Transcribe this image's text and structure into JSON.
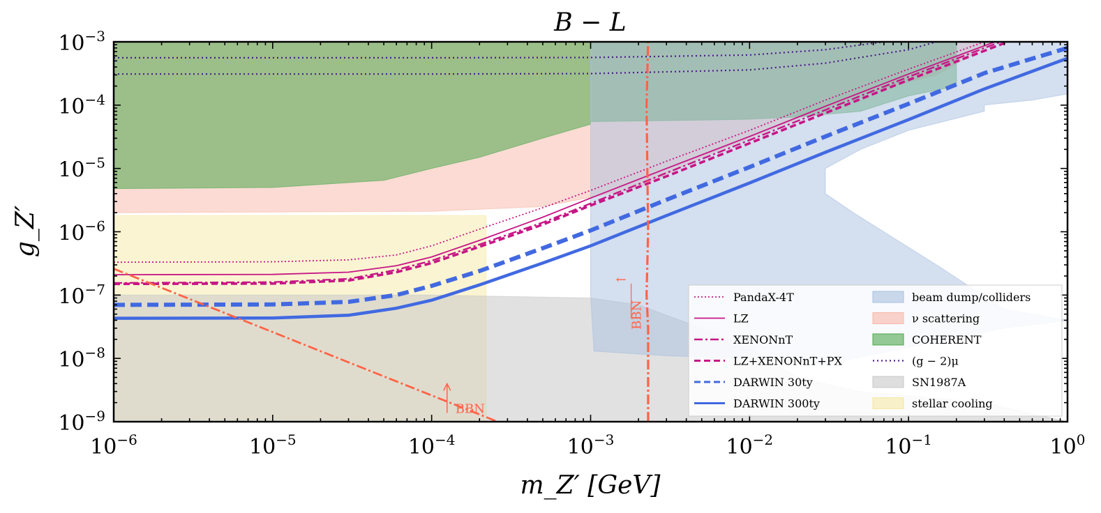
{
  "chart_data": {
    "type": "line",
    "title": "B − L",
    "xlabel": "m_Z′ [GeV]",
    "ylabel": "g_Z′",
    "xscale": "log",
    "yscale": "log",
    "xlim": [
      1e-06,
      1
    ],
    "ylim": [
      1e-09,
      0.001
    ],
    "grid": false,
    "legend_placement": "bottom-right",
    "x_ticks": [
      {
        "base": "10",
        "exp": "−6",
        "value": 1e-06
      },
      {
        "base": "10",
        "exp": "−5",
        "value": 1e-05
      },
      {
        "base": "10",
        "exp": "−4",
        "value": 0.0001
      },
      {
        "base": "10",
        "exp": "−3",
        "value": 0.001
      },
      {
        "base": "10",
        "exp": "−2",
        "value": 0.01
      },
      {
        "base": "10",
        "exp": "−1",
        "value": 0.1
      },
      {
        "base": "10",
        "exp": "0",
        "value": 1
      }
    ],
    "y_ticks": [
      {
        "base": "10",
        "exp": "−9",
        "value": 1e-09
      },
      {
        "base": "10",
        "exp": "−8",
        "value": 1e-08
      },
      {
        "base": "10",
        "exp": "−7",
        "value": 1e-07
      },
      {
        "base": "10",
        "exp": "−6",
        "value": 1e-06
      },
      {
        "base": "10",
        "exp": "−5",
        "value": 1e-05
      },
      {
        "base": "10",
        "exp": "−4",
        "value": 0.0001
      },
      {
        "base": "10",
        "exp": "−3",
        "value": 0.001
      }
    ],
    "regions": [
      {
        "name": "stellar cooling",
        "color": "#f5e9a6",
        "opacity": 0.5,
        "points": [
          [
            1e-06,
            1e-09
          ],
          [
            0.00022,
            1e-09
          ],
          [
            0.00022,
            1.8e-06
          ],
          [
            1e-06,
            1.8e-06
          ]
        ]
      },
      {
        "name": "SN1987A",
        "color": "#c8c8c8",
        "opacity": 0.55,
        "points": [
          [
            1e-06,
            1e-09
          ],
          [
            1,
            1e-09
          ],
          [
            0.3,
            2e-09
          ],
          [
            0.05,
            3e-09
          ],
          [
            0.02,
            5e-09
          ],
          [
            0.01,
            1.5e-08
          ],
          [
            0.005,
            3e-08
          ],
          [
            0.002,
            7e-08
          ],
          [
            0.001,
            9e-08
          ],
          [
            0.0003,
            9.5e-08
          ],
          [
            0.0001,
            1e-07
          ],
          [
            1e-06,
            1e-07
          ]
        ]
      },
      {
        "name": "ν scattering",
        "color": "#f7b8a8",
        "opacity": 0.5,
        "points": [
          [
            1e-06,
            0.001
          ],
          [
            0.35,
            0.001
          ],
          [
            0.15,
            0.0003
          ],
          [
            0.05,
            0.00015
          ],
          [
            0.02,
            6e-05
          ],
          [
            0.01,
            3e-05
          ],
          [
            0.005,
            1.5e-05
          ],
          [
            0.003,
            8e-06
          ],
          [
            0.002,
            5e-06
          ],
          [
            0.001,
            3.5e-06
          ],
          [
            0.0005,
            2.5e-06
          ],
          [
            0.0001,
            2.1e-06
          ],
          [
            1e-06,
            2e-06
          ]
        ]
      },
      {
        "name": "COHERENT",
        "color": "#4fa84f",
        "opacity": 0.55,
        "points": [
          [
            1e-06,
            0.001
          ],
          [
            0.2,
            0.001
          ],
          [
            0.2,
            0.0002
          ],
          [
            0.1,
            0.00014
          ],
          [
            0.05,
            8e-05
          ],
          [
            0.02,
            6.5e-05
          ],
          [
            0.01,
            6e-05
          ],
          [
            0.005,
            5.8e-05
          ],
          [
            0.001,
            5.5e-05
          ],
          [
            0.001,
            5e-05
          ],
          [
            0.0005,
            3e-05
          ],
          [
            0.0002,
            1.5e-05
          ],
          [
            0.0001,
            1e-05
          ],
          [
            5e-05,
            6.5e-06
          ],
          [
            1e-05,
            5e-06
          ],
          [
            1e-06,
            4.8e-06
          ]
        ]
      },
      {
        "name": "beam dump/colliders",
        "color": "#a9c0e0",
        "opacity": 0.5,
        "points": [
          [
            0.001,
            0.001
          ],
          [
            1,
            0.001
          ],
          [
            1,
            0.00015
          ],
          [
            0.6,
            0.00012
          ],
          [
            0.3,
            0.0001
          ],
          [
            0.3,
            8e-05
          ],
          [
            0.1,
            4e-05
          ],
          [
            0.05,
            2e-05
          ],
          [
            0.03,
            1e-05
          ],
          [
            0.03,
            4e-06
          ],
          [
            0.045,
            2e-06
          ],
          [
            0.15,
            3e-07
          ],
          [
            0.4,
            6e-08
          ],
          [
            1,
            4e-08
          ],
          [
            0.4,
            3e-08
          ],
          [
            0.1,
            1.5e-08
          ],
          [
            0.03,
            8e-09
          ],
          [
            0.01,
            1e-08
          ],
          [
            0.003,
            1.1e-08
          ],
          [
            0.00105,
            1.3e-08
          ],
          [
            0.001,
            1e-07
          ]
        ]
      }
    ],
    "series": [
      {
        "name": "PandaX-4T",
        "color": "#c71585",
        "dash": "2,3",
        "width": 1.8,
        "points": [
          [
            1e-06,
            3.3e-07
          ],
          [
            1e-05,
            3.35e-07
          ],
          [
            3e-05,
            3.6e-07
          ],
          [
            6e-05,
            4.3e-07
          ],
          [
            0.0001,
            6e-07
          ],
          [
            0.0002,
            1.1e-06
          ],
          [
            0.0005,
            2.4e-06
          ],
          [
            0.001,
            4.5e-06
          ],
          [
            0.003,
            1.3e-05
          ],
          [
            0.01,
            4e-05
          ],
          [
            0.03,
            0.00012
          ],
          [
            0.1,
            0.00037
          ],
          [
            0.3,
            0.001
          ]
        ]
      },
      {
        "name": "LZ",
        "color": "#c71585",
        "dash": "",
        "width": 1.8,
        "points": [
          [
            1e-06,
            2.1e-07
          ],
          [
            1e-05,
            2.12e-07
          ],
          [
            3e-05,
            2.3e-07
          ],
          [
            6e-05,
            2.9e-07
          ],
          [
            0.0001,
            4e-07
          ],
          [
            0.0002,
            7.3e-07
          ],
          [
            0.0005,
            1.7e-06
          ],
          [
            0.001,
            3.4e-06
          ],
          [
            0.003,
            1e-05
          ],
          [
            0.01,
            3.2e-05
          ],
          [
            0.03,
            9.6e-05
          ],
          [
            0.1,
            0.00031
          ],
          [
            0.35,
            0.001
          ]
        ]
      },
      {
        "name": "XENONnT",
        "color": "#c71585",
        "dash": "12,4,3,4",
        "width": 2.4,
        "points": [
          [
            1e-06,
            1.55e-07
          ],
          [
            1e-05,
            1.6e-07
          ],
          [
            3e-05,
            1.8e-07
          ],
          [
            6e-05,
            2.5e-07
          ],
          [
            0.0001,
            3.5e-07
          ],
          [
            0.0002,
            6.3e-07
          ],
          [
            0.0005,
            1.4e-06
          ],
          [
            0.001,
            2.8e-06
          ],
          [
            0.003,
            8.5e-06
          ],
          [
            0.01,
            2.8e-05
          ],
          [
            0.03,
            8.4e-05
          ],
          [
            0.1,
            0.00028
          ],
          [
            0.38,
            0.001
          ]
        ]
      },
      {
        "name": "LZ+XENONnT+PX",
        "color": "#c71585",
        "dash": "9,5",
        "width": 3.6,
        "points": [
          [
            1e-06,
            1.5e-07
          ],
          [
            1e-05,
            1.52e-07
          ],
          [
            3e-05,
            1.7e-07
          ],
          [
            6e-05,
            2.3e-07
          ],
          [
            0.0001,
            3.2e-07
          ],
          [
            0.0002,
            5.8e-07
          ],
          [
            0.0005,
            1.3e-06
          ],
          [
            0.001,
            2.6e-06
          ],
          [
            0.003,
            7.5e-06
          ],
          [
            0.01,
            2.5e-05
          ],
          [
            0.03,
            7.5e-05
          ],
          [
            0.1,
            0.00025
          ],
          [
            0.42,
            0.001
          ]
        ]
      },
      {
        "name": "DARWIN 30ty",
        "color": "#4169e1",
        "dash": "16,8",
        "width": 6,
        "points": [
          [
            1e-06,
            7e-08
          ],
          [
            1e-05,
            7.1e-08
          ],
          [
            3e-05,
            7.8e-08
          ],
          [
            6e-05,
            1e-07
          ],
          [
            0.0001,
            1.4e-07
          ],
          [
            0.0002,
            2.4e-07
          ],
          [
            0.0005,
            5.5e-07
          ],
          [
            0.001,
            1.05e-06
          ],
          [
            0.003,
            3.2e-06
          ],
          [
            0.01,
            1.05e-05
          ],
          [
            0.03,
            3.2e-05
          ],
          [
            0.1,
            0.000105
          ],
          [
            0.3,
            0.00032
          ],
          [
            1,
            0.0008
          ]
        ]
      },
      {
        "name": "DARWIN 300ty",
        "color": "#4169e1",
        "dash": "",
        "width": 4.5,
        "points": [
          [
            1e-06,
            4.3e-08
          ],
          [
            1e-05,
            4.35e-08
          ],
          [
            3e-05,
            4.8e-08
          ],
          [
            6e-05,
            6.2e-08
          ],
          [
            0.0001,
            8.3e-08
          ],
          [
            0.0002,
            1.45e-07
          ],
          [
            0.0005,
            3.2e-07
          ],
          [
            0.001,
            6e-07
          ],
          [
            0.003,
            1.8e-06
          ],
          [
            0.01,
            5.9e-06
          ],
          [
            0.03,
            1.8e-05
          ],
          [
            0.1,
            5.9e-05
          ],
          [
            0.3,
            0.00018
          ],
          [
            1,
            0.00055
          ]
        ]
      },
      {
        "name": "(g − 2)_μ upper",
        "color": "#4b1a8c",
        "dash": "2,4",
        "width": 2.2,
        "legend": false,
        "points": [
          [
            1e-06,
            0.00056
          ],
          [
            0.0001,
            0.00056
          ],
          [
            0.001,
            0.000565
          ],
          [
            0.01,
            0.00062
          ],
          [
            0.03,
            0.00075
          ],
          [
            0.07,
            0.001
          ]
        ]
      },
      {
        "name": "(g − 2)_μ lower",
        "color": "#4b1a8c",
        "dash": "2,4",
        "width": 2.2,
        "legend": false,
        "points": [
          [
            1e-06,
            0.00031
          ],
          [
            0.0001,
            0.00031
          ],
          [
            0.001,
            0.000315
          ],
          [
            0.01,
            0.00036
          ],
          [
            0.03,
            0.00046
          ],
          [
            0.1,
            0.00075
          ],
          [
            0.15,
            0.001
          ]
        ]
      },
      {
        "name": "BBN diagonal",
        "color": "#ff6347",
        "dash": "14,4,3,4",
        "width": 2.8,
        "legend": false,
        "points": [
          [
            1e-06,
            2.6e-07
          ],
          [
            0.00026,
            1e-09
          ]
        ]
      },
      {
        "name": "BBN vertical",
        "color": "#ff6347",
        "dash": "14,4,3,4",
        "width": 3.2,
        "legend": false,
        "points": [
          [
            0.0023,
            1e-09
          ],
          [
            0.0023,
            3e-08
          ],
          [
            0.00225,
            1e-07
          ],
          [
            0.0023,
            1e-06
          ],
          [
            0.00225,
            0.0001
          ],
          [
            0.0023,
            0.001
          ]
        ]
      }
    ],
    "legend": {
      "columns": [
        [
          {
            "label": "PandaX-4T",
            "kind": "line",
            "color": "#c71585",
            "dash": "2,3",
            "width": 1.8
          },
          {
            "label": "LZ",
            "kind": "line",
            "color": "#c71585",
            "dash": "",
            "width": 1.8
          },
          {
            "label": "XENONnT",
            "kind": "line",
            "color": "#c71585",
            "dash": "12,4,3,4",
            "width": 2.4
          },
          {
            "label": "LZ+XENONnT+PX",
            "kind": "line",
            "color": "#c71585",
            "dash": "9,5",
            "width": 3
          },
          {
            "label": "DARWIN 30ty",
            "kind": "line",
            "color": "#4169e1",
            "dash": "9,5",
            "width": 3
          },
          {
            "label": "DARWIN 300ty",
            "kind": "line",
            "color": "#4169e1",
            "dash": "",
            "width": 3
          }
        ],
        [
          {
            "label": "beam dump/colliders",
            "kind": "patch",
            "color": "#a9c0e0"
          },
          {
            "label": "ν scattering",
            "kind": "patch",
            "color": "#f7b8a8"
          },
          {
            "label": "COHERENT",
            "kind": "patch",
            "color": "#4fa84f"
          },
          {
            "label": "(g − 2)μ",
            "kind": "line",
            "color": "#4b1a8c",
            "dash": "2,4",
            "width": 2.2
          },
          {
            "label": "SN1987A",
            "kind": "patch",
            "color": "#c8c8c8"
          },
          {
            "label": "stellar cooling",
            "kind": "patch",
            "color": "#f5e9a6"
          }
        ]
      ]
    },
    "annotations": [
      {
        "text": "BBN",
        "x": 0.000125,
        "y": 1.6e-09,
        "color": "#ff6347"
      },
      {
        "text": "BBN",
        "x": 0.00195,
        "y": 2e-08,
        "color": "#ff6347",
        "rotate": true
      }
    ]
  }
}
